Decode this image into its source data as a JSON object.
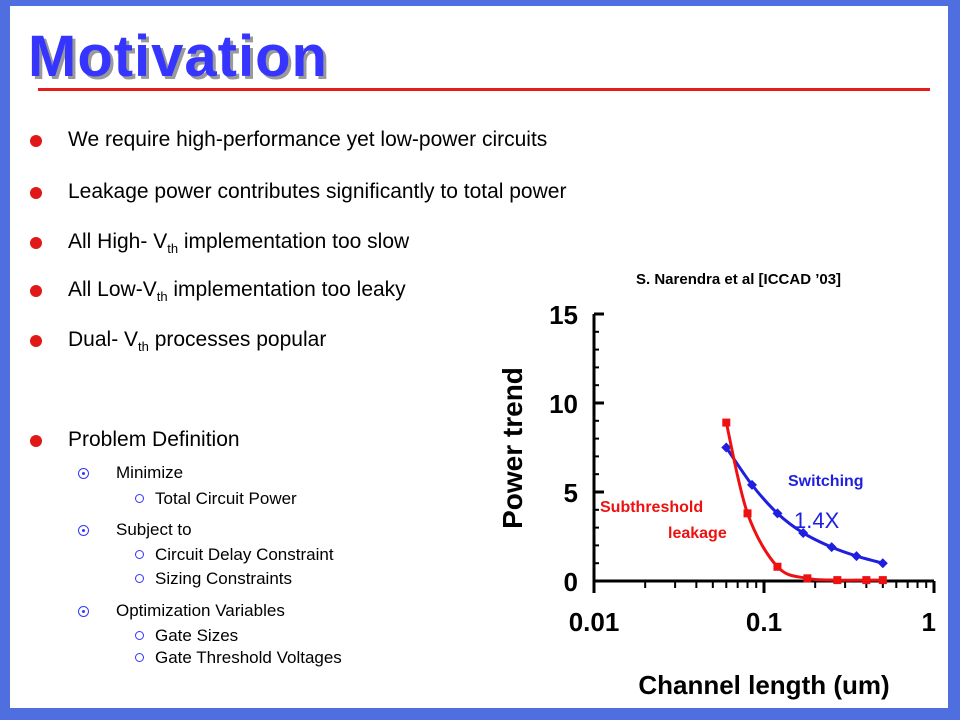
{
  "slide": {
    "title": "Motivation",
    "bullets": [
      {
        "text": "We require high-performance yet low-power circuits"
      },
      {
        "text": "Leakage power contributes significantly to total power"
      },
      {
        "pre": "All High- V",
        "sub": "th",
        "post": " implementation too slow"
      },
      {
        "pre": "All Low-V",
        "sub": "th",
        "post": " implementation too leaky"
      },
      {
        "pre": "Dual- V",
        "sub": "th",
        "post": " processes popular"
      },
      {
        "text": "Problem Definition"
      }
    ],
    "problem": {
      "minimize_label": "Minimize",
      "minimize_items": [
        "Total Circuit Power"
      ],
      "subject_label": "Subject to",
      "subject_items": [
        "Circuit Delay Constraint",
        "Sizing Constraints"
      ],
      "variables_label": "Optimization Variables",
      "variables_items": [
        "Gate Sizes",
        "Gate Threshold Voltages"
      ]
    },
    "citation": "S. Narendra et al [ICCAD ’03]"
  },
  "colors": {
    "title": "#3535ff",
    "title_shadow": "#9a9a9a",
    "rule": "#e81a1a",
    "frame": "#4f6fe0",
    "bullet": "#e01818",
    "sub_bullet": "#3535ff",
    "switching": "#1f1fe0",
    "leakage": "#ee1111"
  },
  "chart_data": {
    "type": "line",
    "title": "",
    "xlabel": "Channel length (um)",
    "ylabel": "Power trend",
    "xscale": "log",
    "xlim": [
      0.01,
      1
    ],
    "ylim": [
      0,
      15
    ],
    "x_ticks": [
      "0.01",
      "0.1",
      "1"
    ],
    "y_ticks": [
      "0",
      "5",
      "10",
      "15"
    ],
    "grid": false,
    "series": [
      {
        "name": "Switching",
        "color": "#1f1fe0",
        "marker": "diamond",
        "x": [
          0.06,
          0.085,
          0.12,
          0.17,
          0.25,
          0.35,
          0.5
        ],
        "y": [
          7.5,
          5.4,
          3.8,
          2.7,
          1.9,
          1.4,
          1.0
        ]
      },
      {
        "name": "Subthreshold leakage",
        "color": "#ee1111",
        "marker": "square",
        "x": [
          0.06,
          0.08,
          0.12,
          0.18,
          0.27,
          0.4,
          0.5
        ],
        "y": [
          8.9,
          3.8,
          0.8,
          0.15,
          0.05,
          0.05,
          0.05
        ]
      }
    ],
    "annotations": [
      {
        "text": "Switching",
        "color": "#1f1fe0"
      },
      {
        "text": "1.4X",
        "color": "#1f1fe0"
      },
      {
        "text": "Subthreshold",
        "color": "#ee1111"
      },
      {
        "text": "leakage",
        "color": "#ee1111"
      }
    ]
  }
}
